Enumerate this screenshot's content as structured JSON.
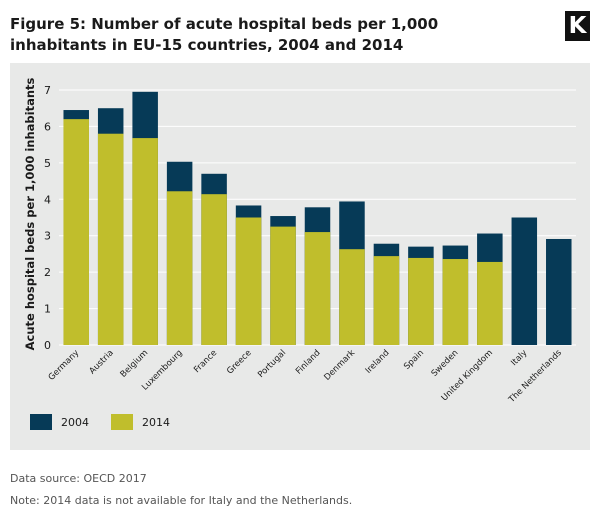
{
  "header": {
    "title": "Figure 5: Number of acute hospital beds per 1,000 inhabitants in EU-15 countries, 2004 and 2014",
    "logo_letter": "K"
  },
  "chart_data": {
    "type": "bar",
    "ylabel": "Acute hospital beds per 1,000 inhabitants",
    "xlabel": "",
    "ylim": [
      0,
      7
    ],
    "yticks": [
      0,
      1,
      2,
      3,
      4,
      5,
      6,
      7
    ],
    "grid": true,
    "legend_position": "bottom-left",
    "categories": [
      "Germany",
      "Austria",
      "Belgium",
      "Luxembourg",
      "France",
      "Greece",
      "Portugal",
      "Finland",
      "Denmark",
      "Ireland",
      "Spain",
      "Sweden",
      "United Kingdom",
      "Italy",
      "The Netherlands"
    ],
    "series": [
      {
        "name": "2004",
        "color": "#063a57",
        "values": [
          6.45,
          6.5,
          6.95,
          5.03,
          4.7,
          3.83,
          3.54,
          3.78,
          3.94,
          2.78,
          2.7,
          2.73,
          3.06,
          3.5,
          2.91
        ]
      },
      {
        "name": "2014",
        "color": "#c0be2c",
        "values": [
          6.2,
          5.8,
          5.68,
          4.22,
          4.14,
          3.5,
          3.25,
          3.1,
          2.63,
          2.44,
          2.39,
          2.36,
          2.28,
          null,
          null
        ]
      }
    ]
  },
  "legend": {
    "items": [
      {
        "label": "2004",
        "color": "#063a57"
      },
      {
        "label": "2014",
        "color": "#c0be2c"
      }
    ]
  },
  "footer": {
    "source": "Data source: OECD 2017",
    "note": "Note: 2014 data is not available for Italy and the Netherlands."
  }
}
